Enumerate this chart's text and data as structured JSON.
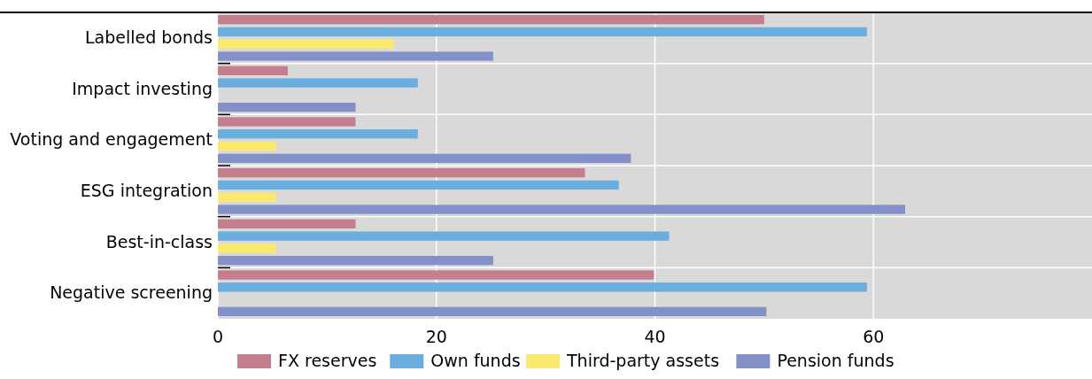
{
  "chart_data": {
    "type": "bar",
    "orientation": "horizontal",
    "categories": [
      "Labelled bonds",
      "Impact investing",
      "Voting and engagement",
      "ESG integration",
      "Best-in-class",
      "Negative screening"
    ],
    "series": [
      {
        "name": "FX reserves",
        "color": "#c47e8e",
        "values": [
          50,
          6.4,
          12.6,
          33.6,
          12.6,
          39.9
        ]
      },
      {
        "name": "Own funds",
        "color": "#6aaee0",
        "values": [
          59.4,
          18.3,
          18.3,
          36.7,
          41.3,
          59.4
        ]
      },
      {
        "name": "Third-party assets",
        "color": "#fbe96e",
        "values": [
          16.1,
          null,
          5.3,
          5.3,
          5.3,
          null
        ]
      },
      {
        "name": "Pension funds",
        "color": "#8491c9",
        "values": [
          25.2,
          12.6,
          37.8,
          62.9,
          25.2,
          50.2
        ]
      }
    ],
    "xlim": [
      0,
      80
    ],
    "xticks": [
      0,
      20,
      40,
      60
    ],
    "grid": true,
    "legend": "bottom"
  }
}
